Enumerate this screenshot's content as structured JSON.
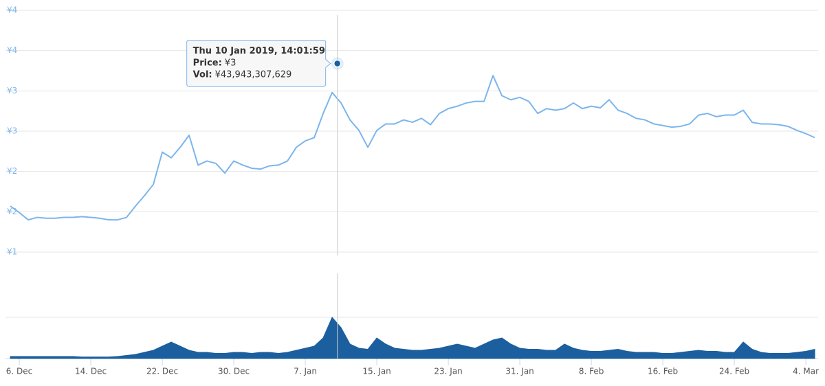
{
  "chart_data": {
    "type": "line",
    "x": [
      "2018-12-05",
      "2018-12-06",
      "2018-12-07",
      "2018-12-08",
      "2018-12-09",
      "2018-12-10",
      "2018-12-11",
      "2018-12-12",
      "2018-12-13",
      "2018-12-14",
      "2018-12-15",
      "2018-12-16",
      "2018-12-17",
      "2018-12-18",
      "2018-12-19",
      "2018-12-20",
      "2018-12-21",
      "2018-12-22",
      "2018-12-23",
      "2018-12-24",
      "2018-12-25",
      "2018-12-26",
      "2018-12-27",
      "2018-12-28",
      "2018-12-29",
      "2018-12-30",
      "2018-12-31",
      "2019-01-01",
      "2019-01-02",
      "2019-01-03",
      "2019-01-04",
      "2019-01-05",
      "2019-01-06",
      "2019-01-07",
      "2019-01-08",
      "2019-01-09",
      "2019-01-10",
      "2019-01-11",
      "2019-01-12",
      "2019-01-13",
      "2019-01-14",
      "2019-01-15",
      "2019-01-16",
      "2019-01-17",
      "2019-01-18",
      "2019-01-19",
      "2019-01-20",
      "2019-01-21",
      "2019-01-22",
      "2019-01-23",
      "2019-01-24",
      "2019-01-25",
      "2019-01-26",
      "2019-01-27",
      "2019-01-28",
      "2019-01-29",
      "2019-01-30",
      "2019-01-31",
      "2019-02-01",
      "2019-02-02",
      "2019-02-03",
      "2019-02-04",
      "2019-02-05",
      "2019-02-06",
      "2019-02-07",
      "2019-02-08",
      "2019-02-09",
      "2019-02-10",
      "2019-02-11",
      "2019-02-12",
      "2019-02-13",
      "2019-02-14",
      "2019-02-15",
      "2019-02-16",
      "2019-02-17",
      "2019-02-18",
      "2019-02-19",
      "2019-02-20",
      "2019-02-21",
      "2019-02-22",
      "2019-02-23",
      "2019-02-24",
      "2019-02-25",
      "2019-02-26",
      "2019-02-27",
      "2019-02-28",
      "2019-03-01",
      "2019-03-02",
      "2019-03-03",
      "2019-03-04",
      "2019-03-05"
    ],
    "xlim": [
      "2018-12-04T11:00:00",
      "2019-03-05T09:00:00"
    ],
    "xticks": [
      {
        "value": "2018-12-06",
        "label": "6. Dec"
      },
      {
        "value": "2018-12-14",
        "label": "14. Dec"
      },
      {
        "value": "2018-12-22",
        "label": "22. Dec"
      },
      {
        "value": "2018-12-30",
        "label": "30. Dec"
      },
      {
        "value": "2019-01-07",
        "label": "7. Jan"
      },
      {
        "value": "2019-01-15",
        "label": "15. Jan"
      },
      {
        "value": "2019-01-23",
        "label": "23. Jan"
      },
      {
        "value": "2019-01-31",
        "label": "31. Jan"
      },
      {
        "value": "2019-02-08",
        "label": "8. Feb"
      },
      {
        "value": "2019-02-16",
        "label": "16. Feb"
      },
      {
        "value": "2019-02-24",
        "label": "24. Feb"
      },
      {
        "value": "2019-03-04",
        "label": "4. Mar"
      }
    ],
    "ylim": [
      1,
      4
    ],
    "yticks": [
      {
        "value": 1,
        "label": "¥1"
      },
      {
        "value": 1.5,
        "label": "¥2"
      },
      {
        "value": 2,
        "label": "¥2"
      },
      {
        "value": 2.5,
        "label": "¥3"
      },
      {
        "value": 3,
        "label": "¥3"
      },
      {
        "value": 3.5,
        "label": "¥4"
      },
      {
        "value": 4,
        "label": "¥4"
      }
    ],
    "y2lim": [
      0,
      80000000000
    ],
    "y2ticks": [
      0,
      40000000000
    ],
    "grid": true,
    "series": [
      {
        "name": "Price",
        "color": "#7cb5ec",
        "values": [
          1.57,
          1.49,
          1.4,
          1.43,
          1.42,
          1.42,
          1.43,
          1.43,
          1.44,
          1.43,
          1.42,
          1.4,
          1.4,
          1.43,
          1.57,
          1.7,
          1.84,
          2.24,
          2.17,
          2.3,
          2.45,
          2.08,
          2.13,
          2.1,
          1.98,
          2.13,
          2.08,
          2.04,
          2.03,
          2.07,
          2.08,
          2.13,
          2.3,
          2.38,
          2.42,
          2.72,
          2.98,
          2.85,
          2.64,
          2.51,
          2.3,
          2.51,
          2.59,
          2.59,
          2.64,
          2.61,
          2.66,
          2.58,
          2.72,
          2.78,
          2.81,
          2.85,
          2.87,
          2.87,
          3.19,
          2.94,
          2.89,
          2.92,
          2.87,
          2.72,
          2.78,
          2.76,
          2.78,
          2.85,
          2.78,
          2.81,
          2.79,
          2.89,
          2.76,
          2.72,
          2.66,
          2.64,
          2.59,
          2.57,
          2.55,
          2.56,
          2.59,
          2.7,
          2.72,
          2.68,
          2.7,
          2.7,
          2.76,
          2.61,
          2.59,
          2.59,
          2.58,
          2.56,
          2.51,
          2.47,
          2.42
        ]
      },
      {
        "name": "Vol",
        "color": "#1c5f9e",
        "axis": "y2",
        "values": [
          2000000000.0,
          2000000000.0,
          2000000000.0,
          2000000000.0,
          2000000000.0,
          2000000000.0,
          2000000000.0,
          2000000000.0,
          1500000000.0,
          1500000000.0,
          1500000000.0,
          1500000000.0,
          2000000000.0,
          3000000000.0,
          4000000000.0,
          6000000000.0,
          8000000000.0,
          12000000000.0,
          16000000000.0,
          12000000000.0,
          8000000000.0,
          6000000000.0,
          6000000000.0,
          5000000000.0,
          5000000000.0,
          6000000000.0,
          6000000000.0,
          5000000000.0,
          6000000000.0,
          6000000000.0,
          5000000000.0,
          6000000000.0,
          8000000000.0,
          10000000000.0,
          12000000000.0,
          20000000000.0,
          40000000000.0,
          30000000000.0,
          14000000000.0,
          10000000000.0,
          9000000000.0,
          20000000000.0,
          14000000000.0,
          10000000000.0,
          9000000000.0,
          8000000000.0,
          8000000000.0,
          9000000000.0,
          10000000000.0,
          12000000000.0,
          14000000000.0,
          12000000000.0,
          10000000000.0,
          14000000000.0,
          18000000000.0,
          20000000000.0,
          14000000000.0,
          10000000000.0,
          9000000000.0,
          9000000000.0,
          8000000000.0,
          8000000000.0,
          14000000000.0,
          10000000000.0,
          8000000000.0,
          7000000000.0,
          7000000000.0,
          8000000000.0,
          9000000000.0,
          7000000000.0,
          6000000000.0,
          6000000000.0,
          6000000000.0,
          5000000000.0,
          5000000000.0,
          6000000000.0,
          7000000000.0,
          8000000000.0,
          7000000000.0,
          7000000000.0,
          6000000000.0,
          6000000000.0,
          16000000000.0,
          9000000000.0,
          6000000000.0,
          5000000000.0,
          5000000000.0,
          5000000000.0,
          6000000000.0,
          7000000000.0,
          9000000000.0
        ]
      }
    ],
    "tooltip": {
      "x": "2019-01-10T14:01:59",
      "title": "Thu 10 Jan 2019, 14:01:59",
      "rows": [
        {
          "label": "Price:",
          "value": 3.34,
          "value_label": "¥3"
        },
        {
          "label": "Vol:",
          "value": 43943307629,
          "value_label": "¥43,943,307,629"
        }
      ]
    }
  }
}
